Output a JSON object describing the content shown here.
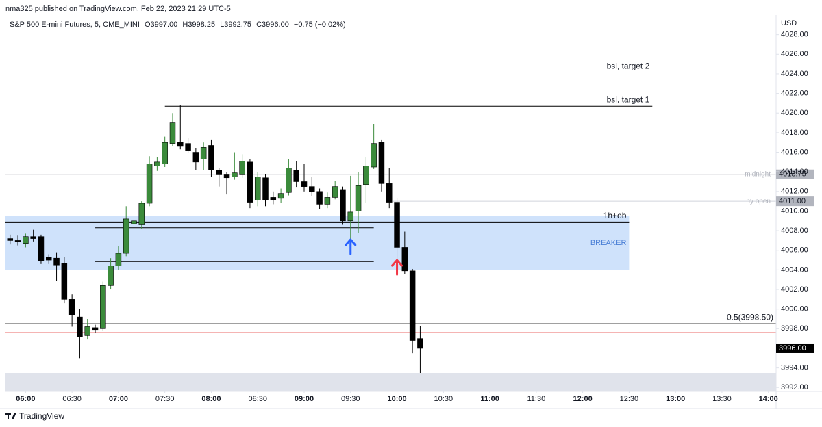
{
  "header": {
    "publisher": "nma325 published on TradingView.com, Feb 22, 2023 21:29 UTC-5"
  },
  "footer": {
    "brand": "TradingView"
  },
  "chart_data": {
    "type": "candlestick",
    "symbol": "S&P 500 E-mini Futures, 5, CME_MINI",
    "ohlc_text": [
      "O3997.00",
      "H3998.25",
      "L3992.75",
      "C3996.00",
      "−0.75 (−0.02%)"
    ],
    "currency": "USD",
    "up_color": "#3b8b3b",
    "down_color": "#000000",
    "x": [
      350,
      355,
      360,
      365,
      370,
      375,
      380,
      385,
      390,
      395,
      400,
      405,
      410,
      415,
      420,
      425,
      430,
      435,
      440,
      445,
      450,
      455,
      460,
      465,
      470,
      475,
      480,
      485,
      490,
      495,
      500,
      505,
      510,
      515,
      520,
      525,
      530,
      535,
      540,
      545,
      550,
      555,
      560,
      565,
      570,
      575,
      580,
      585,
      590,
      595,
      600,
      605,
      610,
      615
    ],
    "open": [
      4007.2,
      4007.0,
      4006.7,
      4007.4,
      4007.4,
      4005.3,
      4005.2,
      4004.7,
      4001.0,
      3999.2,
      3997.3,
      3998.1,
      3998.0,
      4002.4,
      4004.4,
      4005.7,
      4008.7,
      4008.6,
      4010.8,
      4014.6,
      4014.8,
      4016.9,
      4017.0,
      4016.9,
      4016.0,
      4015.3,
      4016.7,
      4014.2,
      4013.7,
      4013.5,
      4013.7,
      4015.0,
      4011.1,
      4013.4,
      4011.4,
      4011.3,
      4011.9,
      4014.2,
      4013.0,
      4012.5,
      4012.0,
      4010.7,
      4011.4,
      4012.2,
      4009.0,
      4010.0,
      4012.7,
      4014.5,
      4017.0,
      4012.8,
      4010.9,
      4006.3,
      4003.9,
      3997.0
    ],
    "high": [
      4007.6,
      4007.5,
      4007.7,
      4008.1,
      4007.6,
      4005.6,
      4005.8,
      4005.3,
      4001.5,
      4000.0,
      3999.0,
      3998.4,
      4002.8,
      4005.2,
      4006.4,
      4010.5,
      4009.5,
      4011.0,
      4015.6,
      4015.5,
      4017.6,
      4020.0,
      4020.8,
      4017.5,
      4016.4,
      4017.0,
      4017.3,
      4014.4,
      4014.0,
      4016.0,
      4015.8,
      4015.3,
      4014.0,
      4013.8,
      4012.0,
      4012.3,
      4015.3,
      4015.1,
      4014.8,
      4013.5,
      4012.3,
      4011.9,
      4013.1,
      4012.5,
      4013.6,
      4014.0,
      4015.5,
      4018.9,
      4017.3,
      4014.4,
      4011.3,
      4007.9,
      4004.1,
      3998.25
    ],
    "low": [
      4006.6,
      4006.5,
      4006.3,
      4006.9,
      4004.6,
      4004.6,
      4002.9,
      4000.6,
      3998.2,
      3995.0,
      3996.9,
      3997.6,
      3997.8,
      4002.0,
      4004.0,
      4005.4,
      4008.0,
      4008.2,
      4010.5,
      4014.1,
      4014.5,
      4016.6,
      4016.3,
      4015.9,
      4014.2,
      4014.2,
      4013.5,
      4012.5,
      4011.7,
      4013.2,
      4013.4,
      4010.3,
      4010.5,
      4010.5,
      4010.7,
      4010.8,
      4011.6,
      4012.4,
      4012.0,
      4011.5,
      4010.2,
      4010.3,
      4011.2,
      4008.6,
      4007.1,
      4007.8,
      4010.8,
      4014.3,
      4012.0,
      4010.3,
      4005.0,
      4003.6,
      3995.5,
      3992.75
    ],
    "close": [
      4007.0,
      4006.9,
      4007.4,
      4007.2,
      4004.9,
      4005.0,
      4004.5,
      4001.0,
      3999.4,
      3997.2,
      3998.2,
      3997.9,
      4002.4,
      4004.4,
      4005.7,
      4009.2,
      4009.0,
      4010.8,
      4014.8,
      4015.0,
      4017.0,
      4019.0,
      4016.6,
      4016.2,
      4015.0,
      4016.5,
      4014.2,
      4013.7,
      4013.4,
      4013.9,
      4015.1,
      4010.9,
      4013.5,
      4011.1,
      4011.1,
      4011.8,
      4014.4,
      4013.0,
      4012.5,
      4012.0,
      4010.7,
      4011.4,
      4012.5,
      4009.0,
      4009.9,
      4012.6,
      4014.6,
      4016.9,
      4012.8,
      4010.9,
      4006.3,
      4003.9,
      3996.8,
      3996.0
    ],
    "xlim": [
      347,
      845
    ],
    "ylim": [
      3991.6,
      4030.0
    ],
    "xticks": [
      {
        "value": 360,
        "label": "06:00"
      },
      {
        "value": 390,
        "label": "06:30"
      },
      {
        "value": 420,
        "label": "07:00"
      },
      {
        "value": 450,
        "label": "07:30"
      },
      {
        "value": 480,
        "label": "08:00"
      },
      {
        "value": 510,
        "label": "08:30"
      },
      {
        "value": 540,
        "label": "09:00"
      },
      {
        "value": 570,
        "label": "09:30"
      },
      {
        "value": 600,
        "label": "10:00"
      },
      {
        "value": 630,
        "label": "10:30"
      },
      {
        "value": 660,
        "label": "11:00"
      },
      {
        "value": 690,
        "label": "11:30"
      },
      {
        "value": 720,
        "label": "12:00"
      },
      {
        "value": 750,
        "label": "12:30"
      },
      {
        "value": 780,
        "label": "13:00"
      },
      {
        "value": 810,
        "label": "13:30"
      },
      {
        "value": 840,
        "label": "14:00"
      }
    ],
    "yticks": [
      {
        "value": 3992,
        "label": "3992.00"
      },
      {
        "value": 3994,
        "label": "3994.00"
      },
      {
        "value": 3996,
        "label": "3996.00"
      },
      {
        "value": 3998,
        "label": "3998.00"
      },
      {
        "value": 4000,
        "label": "4000.00"
      },
      {
        "value": 4002,
        "label": "4002.00"
      },
      {
        "value": 4004,
        "label": "4004.00"
      },
      {
        "value": 4006,
        "label": "4006.00"
      },
      {
        "value": 4008,
        "label": "4008.00"
      },
      {
        "value": 4010,
        "label": "4010.00"
      },
      {
        "value": 4012,
        "label": "4012.00"
      },
      {
        "value": 4014,
        "label": "4014.00"
      },
      {
        "value": 4016,
        "label": "4016.00"
      },
      {
        "value": 4018,
        "label": "4018.00"
      },
      {
        "value": 4020,
        "label": "4020.00"
      },
      {
        "value": 4022,
        "label": "4022.00"
      },
      {
        "value": 4024,
        "label": "4024.00"
      },
      {
        "value": 4026,
        "label": "4026.00"
      },
      {
        "value": 4028,
        "label": "4028.00"
      }
    ],
    "zones": [
      {
        "label": "BREAKER",
        "top": 4009.5,
        "bottom": 4004.0,
        "x_range": [
          347,
          750
        ],
        "color": "#cfe2fb",
        "label_color": "#4a7fd6"
      }
    ],
    "levels": [
      {
        "label": "bsl, target 2",
        "value": 4024.1,
        "x_range": [
          347,
          765
        ],
        "color": "#000000"
      },
      {
        "label": "bsl, target 1",
        "value": 4020.7,
        "x_range": [
          450,
          765
        ],
        "color": "#000000"
      },
      {
        "label": "1h+ob",
        "value": 4008.85,
        "x_range": [
          347,
          750
        ],
        "color": "#000000"
      },
      {
        "value": 4008.3,
        "x_range": [
          405,
          585
        ],
        "color": "#000000"
      },
      {
        "value": 4004.85,
        "x_range": [
          405,
          585
        ],
        "color": "#000000"
      },
      {
        "label": "midnight",
        "value": 4013.75,
        "value_label": "4013.75",
        "color": "#b2b5be"
      },
      {
        "label": "ny open",
        "value": 4011.0,
        "value_label": "4011.00",
        "x_range": [
          597,
          845
        ],
        "color": "#d1d4dc"
      },
      {
        "label": "0.5(3998.50)",
        "value": 3998.5,
        "color": "#000000"
      },
      {
        "value": 3997.6,
        "color": "#e53935"
      }
    ],
    "markers": [
      {
        "x": 570,
        "y": 4007.1,
        "color": "#2962ff"
      },
      {
        "x": 600,
        "y": 4005.0,
        "color": "#f23645"
      }
    ],
    "last_price": {
      "value": 3996.0,
      "label": "3996.00"
    }
  }
}
